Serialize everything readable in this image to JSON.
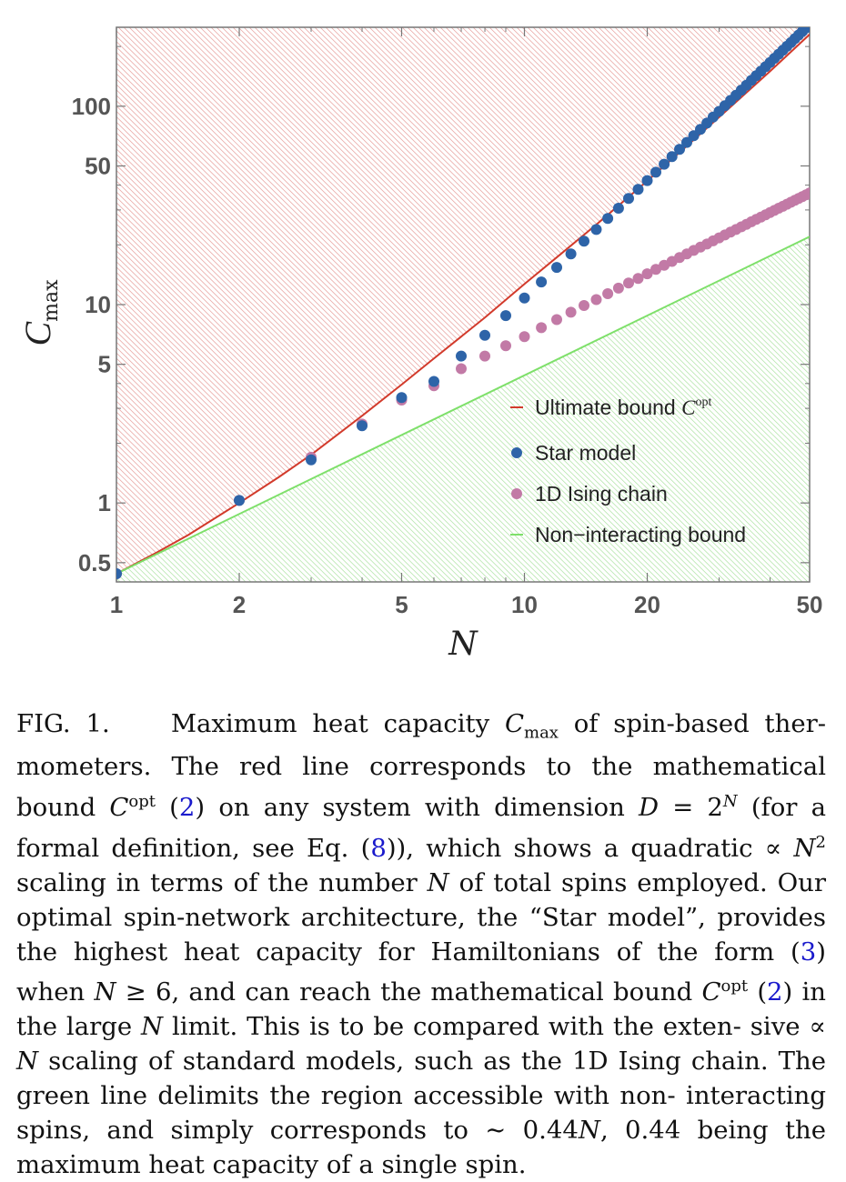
{
  "chart_data": {
    "type": "scatter",
    "xscale": "log",
    "yscale": "log",
    "xlabel": "N",
    "ylabel": "C",
    "ylabel_sub": "max",
    "xlim": [
      1,
      50
    ],
    "ylim": [
      0.4,
      250
    ],
    "xticks": [
      1,
      2,
      5,
      10,
      20,
      50
    ],
    "xtick_labels": [
      "1",
      "2",
      "5",
      "10",
      "20",
      "50"
    ],
    "yticks": [
      0.5,
      1,
      5,
      10,
      50,
      100
    ],
    "ytick_labels": [
      "0.5",
      "1",
      "5",
      "10",
      "50",
      "100"
    ],
    "legend_position": "bottom-right",
    "series": [
      {
        "name": "Ultimate bound",
        "name_sup": "opt",
        "kind": "line",
        "color": "#d23a2b",
        "x": [
          1,
          1.25,
          1.5,
          2,
          2.5,
          3,
          4,
          5,
          6,
          7,
          8,
          10,
          12,
          15,
          20,
          25,
          30,
          40,
          50
        ],
        "y": [
          0.44,
          0.56,
          0.69,
          1.0,
          1.35,
          1.75,
          2.75,
          3.95,
          5.35,
          6.9,
          8.6,
          12.7,
          17.3,
          25.3,
          42,
          63,
          88,
          150,
          230
        ]
      },
      {
        "name": "Star model",
        "kind": "points",
        "color": "#2e64a8",
        "x": [
          1,
          2,
          3,
          4,
          5,
          6,
          7,
          8,
          9,
          10,
          11,
          12,
          13,
          14,
          15,
          16,
          17,
          18,
          19,
          20,
          21,
          22,
          23,
          24,
          25,
          26,
          27,
          28,
          29,
          30,
          31,
          32,
          33,
          34,
          35,
          36,
          37,
          38,
          39,
          40,
          41,
          42,
          43,
          44,
          45,
          46,
          47,
          48,
          49,
          50
        ],
        "y": [
          0.44,
          1.03,
          1.65,
          2.45,
          3.4,
          4.1,
          5.5,
          7.0,
          8.8,
          10.8,
          13.0,
          15.4,
          18.0,
          20.9,
          23.9,
          27.2,
          30.6,
          34.3,
          38.1,
          42.2,
          46.5,
          51.0,
          55.7,
          60.6,
          65.7,
          71.0,
          76.5,
          82.2,
          88.1,
          94.2,
          100.5,
          107,
          113.7,
          120.6,
          127.7,
          135,
          142.5,
          150.2,
          158.1,
          166.2,
          174.5,
          183,
          191.7,
          200.6,
          209.7,
          219,
          228.5,
          238.2,
          248.1,
          258.2
        ]
      },
      {
        "name": "1D Ising chain",
        "kind": "points",
        "color": "#c27aa6",
        "x": [
          1,
          2,
          3,
          4,
          5,
          6,
          7,
          8,
          9,
          10,
          11,
          12,
          13,
          14,
          15,
          16,
          17,
          18,
          19,
          20,
          21,
          22,
          23,
          24,
          25,
          26,
          27,
          28,
          29,
          30,
          31,
          32,
          33,
          34,
          35,
          36,
          37,
          38,
          39,
          40,
          41,
          42,
          43,
          44,
          45,
          46,
          47,
          48,
          49,
          50
        ],
        "y": [
          0.44,
          1.03,
          1.7,
          2.5,
          3.3,
          3.9,
          4.75,
          5.5,
          6.2,
          6.9,
          7.65,
          8.4,
          9.15,
          9.9,
          10.6,
          11.35,
          12.1,
          12.85,
          13.55,
          14.3,
          15.05,
          15.8,
          16.5,
          17.25,
          18.0,
          18.75,
          19.5,
          20.2,
          20.95,
          21.7,
          22.45,
          23.2,
          23.9,
          24.65,
          25.4,
          26.15,
          26.9,
          27.6,
          28.35,
          29.1,
          29.85,
          30.6,
          31.3,
          32.05,
          32.8,
          33.55,
          34.3,
          35.0,
          35.75,
          36.5
        ]
      },
      {
        "name": "Non−interacting bound",
        "kind": "line",
        "color": "#7ee06a",
        "x": [
          1,
          50
        ],
        "y": [
          0.44,
          22
        ]
      }
    ]
  },
  "caption": {
    "fig_label": "FIG. 1.",
    "p1": "Maximum heat capacity",
    "sym_c": "C",
    "sub_max": "max",
    "p2": "of spin-based ther- mometers. The red line corresponds to the mathematical bound",
    "sup_opt": "opt",
    "ref2": "2",
    "p3": "on any system with dimension",
    "var_D": "D",
    "p4": "= 2",
    "var_N": "N",
    "p5": "(for a formal definition, see Eq. (",
    "ref8": "8",
    "p6": ")), which shows a quadratic ∝",
    "p7": "scaling in terms of the number",
    "p8": "of total spins employed. Our optimal spin-network architecture, the “Star model”, provides the highest heat capacity for Hamiltonians of the form (",
    "ref3": "3",
    "p9": ") when",
    "p10": "≥ 6, and can reach the mathematical bound",
    "p11": "in the large",
    "p12": "limit. This is to be compared with the exten- sive ∝",
    "p13": "scaling of standard models, such as the 1D Ising chain. The green line delimits the region accessible with non- interacting spins, and simply corresponds to ∼ 0.44",
    "p14": ", 0.44 being the maximum heat capacity of a single spin.",
    "sup_2": "2"
  }
}
